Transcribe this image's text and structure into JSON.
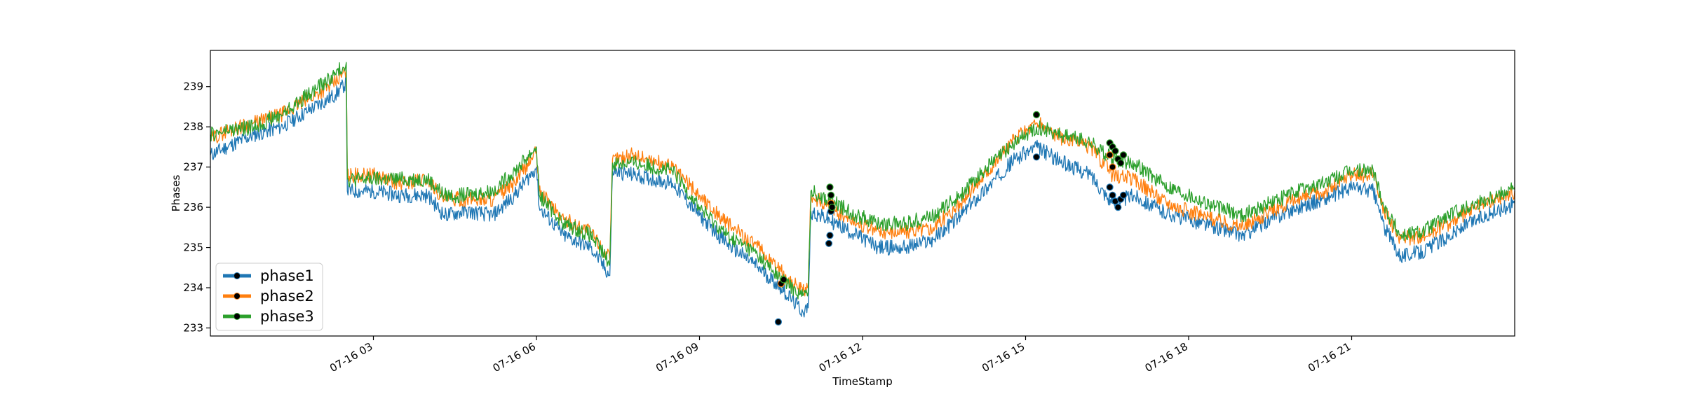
{
  "chart_data": {
    "type": "line",
    "title": "",
    "xlabel": "TimeStamp",
    "ylabel": "Phases",
    "x_range": [
      "07-16 00:00",
      "23:59"
    ],
    "xlim_hours": [
      0,
      24
    ],
    "ylim": [
      232.8,
      239.9
    ],
    "x_ticks": [
      {
        "hour": 3,
        "label": "07-16 03"
      },
      {
        "hour": 6,
        "label": "07-16 06"
      },
      {
        "hour": 9,
        "label": "07-16 09"
      },
      {
        "hour": 12,
        "label": "07-16 12"
      },
      {
        "hour": 15,
        "label": "07-16 15"
      },
      {
        "hour": 18,
        "label": "07-16 18"
      },
      {
        "hour": 21,
        "label": "07-16 21"
      }
    ],
    "y_ticks": [
      233,
      234,
      235,
      236,
      237,
      238,
      239
    ],
    "grid": false,
    "legend_position": "lower-left",
    "series": [
      {
        "name": "phase1",
        "color": "#1f77b4",
        "points": [
          [
            0.0,
            237.3
          ],
          [
            0.3,
            237.5
          ],
          [
            0.8,
            237.8
          ],
          [
            1.3,
            238.0
          ],
          [
            1.8,
            238.4
          ],
          [
            2.3,
            238.8
          ],
          [
            2.5,
            239.1
          ],
          [
            2.52,
            236.4
          ],
          [
            3.0,
            236.4
          ],
          [
            3.5,
            236.3
          ],
          [
            4.0,
            236.3
          ],
          [
            4.3,
            235.8
          ],
          [
            4.7,
            235.9
          ],
          [
            5.2,
            235.8
          ],
          [
            5.6,
            236.3
          ],
          [
            6.0,
            237.0
          ],
          [
            6.05,
            236.0
          ],
          [
            6.5,
            235.3
          ],
          [
            7.0,
            235.0
          ],
          [
            7.35,
            234.3
          ],
          [
            7.4,
            236.9
          ],
          [
            7.8,
            236.8
          ],
          [
            8.5,
            236.6
          ],
          [
            9.0,
            235.8
          ],
          [
            9.5,
            235.1
          ],
          [
            10.0,
            234.6
          ],
          [
            10.5,
            234.0
          ],
          [
            10.9,
            233.4
          ],
          [
            11.0,
            233.5
          ],
          [
            11.05,
            235.9
          ],
          [
            11.5,
            235.6
          ],
          [
            11.9,
            235.3
          ],
          [
            12.3,
            235.0
          ],
          [
            12.8,
            235.0
          ],
          [
            13.3,
            235.2
          ],
          [
            13.8,
            235.8
          ],
          [
            14.3,
            236.5
          ],
          [
            14.8,
            237.2
          ],
          [
            15.2,
            237.5
          ],
          [
            15.7,
            237.1
          ],
          [
            16.2,
            236.8
          ],
          [
            16.6,
            236.1
          ],
          [
            17.0,
            236.3
          ],
          [
            17.5,
            235.9
          ],
          [
            18.0,
            235.7
          ],
          [
            18.5,
            235.5
          ],
          [
            19.0,
            235.3
          ],
          [
            19.5,
            235.7
          ],
          [
            20.0,
            236.0
          ],
          [
            20.5,
            236.2
          ],
          [
            21.0,
            236.5
          ],
          [
            21.4,
            236.4
          ],
          [
            21.6,
            235.5
          ],
          [
            21.9,
            234.8
          ],
          [
            22.3,
            234.9
          ],
          [
            22.8,
            235.3
          ],
          [
            23.3,
            235.7
          ],
          [
            24.0,
            236.1
          ]
        ]
      },
      {
        "name": "phase2",
        "color": "#ff7f0e",
        "points": [
          [
            0.0,
            237.7
          ],
          [
            0.3,
            237.9
          ],
          [
            0.8,
            238.1
          ],
          [
            1.3,
            238.3
          ],
          [
            1.8,
            238.7
          ],
          [
            2.3,
            239.1
          ],
          [
            2.5,
            239.4
          ],
          [
            2.52,
            236.8
          ],
          [
            3.0,
            236.8
          ],
          [
            3.5,
            236.6
          ],
          [
            4.0,
            236.7
          ],
          [
            4.3,
            236.2
          ],
          [
            4.7,
            236.2
          ],
          [
            5.2,
            236.2
          ],
          [
            5.6,
            236.6
          ],
          [
            6.0,
            237.4
          ],
          [
            6.05,
            236.4
          ],
          [
            6.5,
            235.7
          ],
          [
            7.0,
            235.4
          ],
          [
            7.35,
            234.7
          ],
          [
            7.4,
            237.2
          ],
          [
            7.8,
            237.3
          ],
          [
            8.5,
            237.0
          ],
          [
            9.0,
            236.3
          ],
          [
            9.5,
            235.6
          ],
          [
            10.0,
            235.1
          ],
          [
            10.5,
            234.4
          ],
          [
            10.9,
            233.9
          ],
          [
            11.0,
            234.0
          ],
          [
            11.05,
            236.3
          ],
          [
            11.5,
            235.9
          ],
          [
            11.9,
            235.6
          ],
          [
            12.3,
            235.4
          ],
          [
            12.8,
            235.4
          ],
          [
            13.3,
            235.5
          ],
          [
            13.8,
            236.1
          ],
          [
            14.3,
            236.9
          ],
          [
            14.8,
            237.7
          ],
          [
            15.2,
            238.1
          ],
          [
            15.7,
            237.7
          ],
          [
            16.2,
            237.5
          ],
          [
            16.6,
            236.8
          ],
          [
            17.0,
            236.7
          ],
          [
            17.5,
            236.2
          ],
          [
            18.0,
            235.9
          ],
          [
            18.5,
            235.7
          ],
          [
            19.0,
            235.5
          ],
          [
            19.5,
            235.9
          ],
          [
            20.0,
            236.2
          ],
          [
            20.5,
            236.4
          ],
          [
            21.0,
            236.8
          ],
          [
            21.4,
            236.8
          ],
          [
            21.6,
            235.9
          ],
          [
            21.9,
            235.2
          ],
          [
            22.3,
            235.3
          ],
          [
            22.8,
            235.6
          ],
          [
            23.3,
            236.0
          ],
          [
            24.0,
            236.4
          ]
        ]
      },
      {
        "name": "phase3",
        "color": "#2ca02c",
        "points": [
          [
            0.0,
            237.8
          ],
          [
            0.3,
            237.9
          ],
          [
            0.8,
            238.0
          ],
          [
            1.3,
            238.3
          ],
          [
            1.8,
            238.8
          ],
          [
            2.3,
            239.3
          ],
          [
            2.5,
            239.6
          ],
          [
            2.52,
            236.7
          ],
          [
            3.0,
            236.7
          ],
          [
            3.5,
            236.7
          ],
          [
            4.0,
            236.7
          ],
          [
            4.3,
            236.3
          ],
          [
            4.7,
            236.3
          ],
          [
            5.2,
            236.4
          ],
          [
            5.6,
            236.9
          ],
          [
            6.0,
            237.5
          ],
          [
            6.05,
            236.3
          ],
          [
            6.5,
            235.6
          ],
          [
            7.0,
            235.3
          ],
          [
            7.35,
            234.6
          ],
          [
            7.4,
            237.1
          ],
          [
            7.8,
            237.1
          ],
          [
            8.5,
            236.9
          ],
          [
            9.0,
            236.0
          ],
          [
            9.5,
            235.3
          ],
          [
            10.0,
            234.9
          ],
          [
            10.5,
            234.2
          ],
          [
            10.9,
            233.8
          ],
          [
            11.0,
            233.9
          ],
          [
            11.05,
            236.4
          ],
          [
            11.5,
            236.1
          ],
          [
            11.9,
            235.8
          ],
          [
            12.3,
            235.6
          ],
          [
            12.8,
            235.6
          ],
          [
            13.3,
            235.8
          ],
          [
            13.8,
            236.3
          ],
          [
            14.3,
            237.0
          ],
          [
            14.8,
            237.6
          ],
          [
            15.2,
            238.0
          ],
          [
            15.7,
            237.8
          ],
          [
            16.2,
            237.6
          ],
          [
            16.6,
            237.2
          ],
          [
            17.0,
            237.1
          ],
          [
            17.5,
            236.6
          ],
          [
            18.0,
            236.3
          ],
          [
            18.5,
            236.0
          ],
          [
            19.0,
            235.8
          ],
          [
            19.5,
            236.1
          ],
          [
            20.0,
            236.4
          ],
          [
            20.5,
            236.6
          ],
          [
            21.0,
            236.9
          ],
          [
            21.4,
            236.9
          ],
          [
            21.6,
            236.0
          ],
          [
            21.9,
            235.3
          ],
          [
            22.3,
            235.4
          ],
          [
            22.8,
            235.8
          ],
          [
            23.3,
            236.1
          ],
          [
            24.0,
            236.5
          ]
        ]
      }
    ],
    "anomaly_markers": [
      {
        "series": "phase1",
        "color": "#000000",
        "points": [
          [
            10.45,
            233.15
          ],
          [
            11.38,
            235.1
          ],
          [
            11.4,
            235.3
          ],
          [
            11.42,
            235.9
          ],
          [
            15.2,
            237.25
          ],
          [
            16.55,
            236.5
          ],
          [
            16.6,
            236.3
          ],
          [
            16.65,
            236.15
          ],
          [
            16.7,
            236.0
          ],
          [
            16.75,
            236.2
          ],
          [
            16.8,
            236.3
          ]
        ]
      },
      {
        "series": "phase2",
        "color": "#000000",
        "points": [
          [
            10.5,
            234.1
          ],
          [
            11.42,
            236.1
          ],
          [
            16.55,
            237.3
          ],
          [
            16.6,
            237.0
          ],
          [
            16.7,
            237.2
          ]
        ]
      },
      {
        "series": "phase3",
        "color": "#000000",
        "points": [
          [
            10.55,
            234.2
          ],
          [
            11.4,
            236.5
          ],
          [
            11.42,
            236.3
          ],
          [
            11.44,
            236.0
          ],
          [
            15.2,
            238.3
          ],
          [
            16.55,
            237.6
          ],
          [
            16.6,
            237.5
          ],
          [
            16.65,
            237.4
          ],
          [
            16.7,
            237.2
          ],
          [
            16.75,
            237.1
          ],
          [
            16.8,
            237.3
          ]
        ]
      }
    ]
  }
}
